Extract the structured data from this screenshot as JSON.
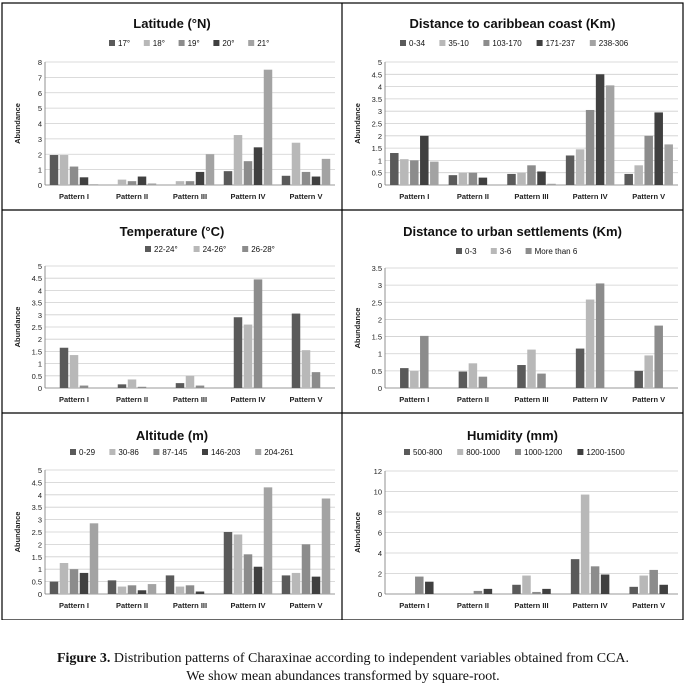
{
  "chart_data": [
    {
      "type": "bar",
      "title": "Latitude (°N)",
      "ylabel": "Abundance",
      "ylim": [
        0,
        8
      ],
      "yticks": [
        "0",
        "1",
        "2",
        "3",
        "4",
        "5",
        "6",
        "7",
        "8"
      ],
      "categories": [
        "Pattern I",
        "Pattern II",
        "Pattern III",
        "Pattern IV",
        "Pattern V"
      ],
      "series": [
        {
          "name": "17°",
          "color": "#5a5a5a",
          "values": [
            1.95,
            0.0,
            0.0,
            0.9,
            0.6
          ]
        },
        {
          "name": "18°",
          "color": "#b8b8b8",
          "values": [
            1.95,
            0.35,
            0.25,
            3.25,
            2.75
          ]
        },
        {
          "name": "19°",
          "color": "#8c8c8c",
          "values": [
            1.2,
            0.25,
            0.25,
            1.55,
            0.85
          ]
        },
        {
          "name": "20°",
          "color": "#404040",
          "values": [
            0.5,
            0.55,
            0.85,
            2.45,
            0.55
          ]
        },
        {
          "name": "21°",
          "color": "#a3a3a3",
          "values": [
            0.05,
            0.1,
            2.0,
            7.5,
            1.7
          ]
        }
      ]
    },
    {
      "type": "bar",
      "title": "Distance to caribbean coast (Km)",
      "ylabel": "Abundance",
      "ylim": [
        0,
        5
      ],
      "yticks": [
        "0",
        "0.5",
        "1",
        "1.5",
        "2",
        "2.5",
        "3",
        "3.5",
        "4",
        "4.5",
        "5"
      ],
      "categories": [
        "Pattern I",
        "Pattern II",
        "Pattern III",
        "Pattern IV",
        "Pattern V"
      ],
      "series": [
        {
          "name": "0-34",
          "color": "#5a5a5a",
          "values": [
            1.3,
            0.4,
            0.45,
            1.2,
            0.45
          ]
        },
        {
          "name": "35-10",
          "color": "#b8b8b8",
          "values": [
            1.05,
            0.5,
            0.5,
            1.45,
            0.8
          ]
        },
        {
          "name": "103-170",
          "color": "#8c8c8c",
          "values": [
            1.0,
            0.5,
            0.8,
            3.05,
            2.0
          ]
        },
        {
          "name": "171-237",
          "color": "#404040",
          "values": [
            2.0,
            0.3,
            0.55,
            4.5,
            2.95
          ]
        },
        {
          "name": "238-306",
          "color": "#a3a3a3",
          "values": [
            0.95,
            0.0,
            0.05,
            4.05,
            1.65
          ]
        }
      ]
    },
    {
      "type": "bar",
      "title": "Temperature (°C)",
      "ylabel": "Abundance",
      "ylim": [
        0,
        5
      ],
      "yticks": [
        "0",
        "0.5",
        "1",
        "1.5",
        "2",
        "2.5",
        "3",
        "3.5",
        "4",
        "4.5",
        "5"
      ],
      "categories": [
        "Pattern I",
        "Pattern II",
        "Pattern III",
        "Pattern IV",
        "Pattern V"
      ],
      "series": [
        {
          "name": "22-24°",
          "color": "#5a5a5a",
          "values": [
            1.65,
            0.15,
            0.2,
            2.9,
            3.05
          ]
        },
        {
          "name": "24-26°",
          "color": "#b8b8b8",
          "values": [
            1.35,
            0.35,
            0.5,
            2.6,
            1.55
          ]
        },
        {
          "name": "26-28°",
          "color": "#8c8c8c",
          "values": [
            0.1,
            0.05,
            0.1,
            4.45,
            0.65
          ]
        }
      ]
    },
    {
      "type": "bar",
      "title": "Distance to urban settlements (Km)",
      "ylabel": "Abundance",
      "ylim": [
        0,
        3.5
      ],
      "yticks": [
        "0",
        "0.5",
        "1",
        "1.5",
        "2",
        "2.5",
        "3",
        "3.5"
      ],
      "categories": [
        "Pattern I",
        "Pattern II",
        "Pattern III",
        "Pattern IV",
        "Pattern V"
      ],
      "series": [
        {
          "name": "0-3",
          "color": "#5a5a5a",
          "values": [
            0.58,
            0.48,
            0.67,
            1.15,
            0.5
          ]
        },
        {
          "name": "3-6",
          "color": "#b8b8b8",
          "values": [
            0.5,
            0.72,
            1.12,
            2.58,
            0.95
          ]
        },
        {
          "name": "More than 6",
          "color": "#8c8c8c",
          "values": [
            1.52,
            0.33,
            0.42,
            3.05,
            1.82
          ]
        }
      ]
    },
    {
      "type": "bar",
      "title": "Altitude (m)",
      "ylabel": "Abundance",
      "ylim": [
        0,
        5
      ],
      "yticks": [
        "0",
        "0.5",
        "1",
        "1.5",
        "2",
        "2.5",
        "3",
        "3.5",
        "4",
        "4.5",
        "5"
      ],
      "categories": [
        "Pattern I",
        "Pattern II",
        "Pattern III",
        "Pattern IV",
        "Pattern V"
      ],
      "series": [
        {
          "name": "0-29",
          "color": "#5a5a5a",
          "values": [
            0.5,
            0.55,
            0.75,
            2.5,
            0.75
          ]
        },
        {
          "name": "30-86",
          "color": "#b8b8b8",
          "values": [
            1.25,
            0.3,
            0.3,
            2.4,
            0.85
          ]
        },
        {
          "name": "87-145",
          "color": "#8c8c8c",
          "values": [
            1.0,
            0.35,
            0.35,
            1.6,
            2.0
          ]
        },
        {
          "name": "146-203",
          "color": "#404040",
          "values": [
            0.85,
            0.15,
            0.1,
            1.1,
            0.7
          ]
        },
        {
          "name": "204-261",
          "color": "#a3a3a3",
          "values": [
            2.85,
            0.4,
            0.0,
            4.3,
            3.85
          ]
        }
      ]
    },
    {
      "type": "bar",
      "title": "Humidity (mm)",
      "ylabel": "Abundance",
      "ylim": [
        0,
        12
      ],
      "yticks": [
        "0",
        "2",
        "4",
        "6",
        "8",
        "10",
        "12"
      ],
      "categories": [
        "Pattern I",
        "Pattern II",
        "Pattern III",
        "Pattern IV",
        "Pattern V"
      ],
      "series": [
        {
          "name": "500-800",
          "color": "#5a5a5a",
          "values": [
            0.0,
            0.0,
            0.9,
            3.4,
            0.7
          ]
        },
        {
          "name": "800-1000",
          "color": "#b8b8b8",
          "values": [
            0.0,
            0.0,
            1.8,
            9.7,
            1.8
          ]
        },
        {
          "name": "1000-1200",
          "color": "#8c8c8c",
          "values": [
            1.7,
            0.3,
            0.2,
            2.7,
            2.35
          ]
        },
        {
          "name": "1200-1500",
          "color": "#404040",
          "values": [
            1.2,
            0.5,
            0.5,
            1.9,
            0.9
          ]
        }
      ]
    }
  ],
  "caption": {
    "label": "Figure 3.",
    "line1": " Distribution patterns of Charaxinae according to independent variables obtained from CCA.",
    "line2": "We show mean abundances transformed by square-root."
  }
}
